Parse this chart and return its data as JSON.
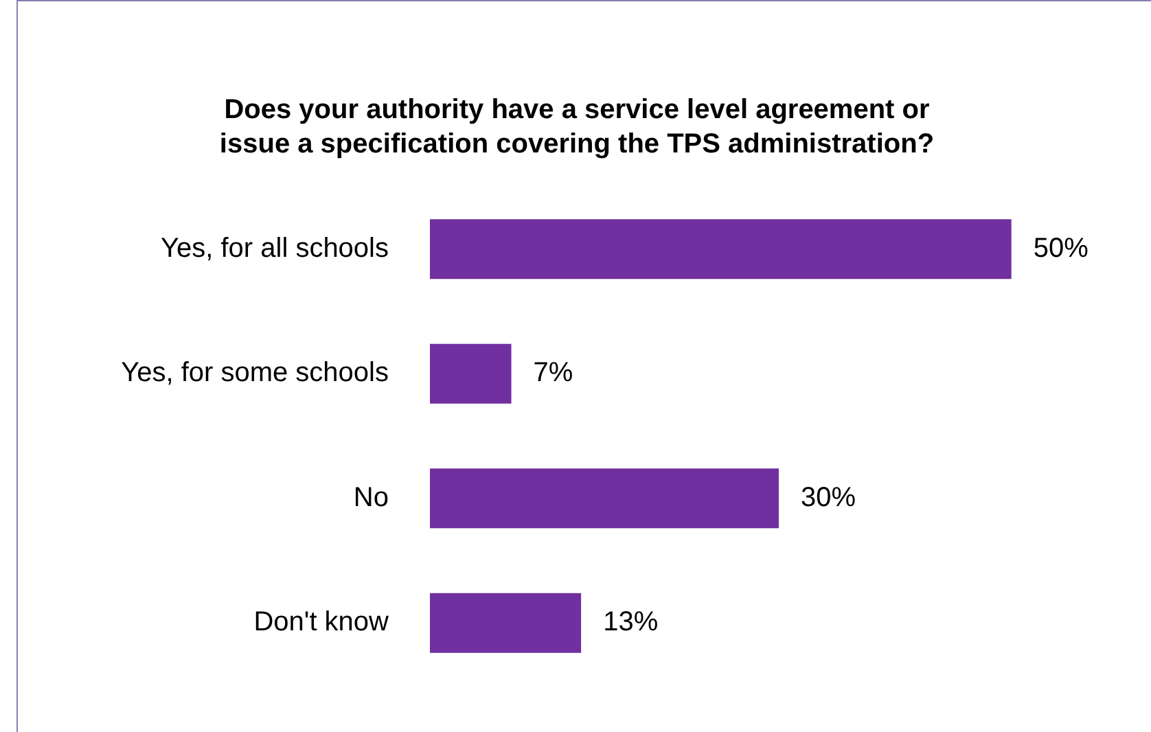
{
  "chart_data": {
    "type": "bar",
    "orientation": "horizontal",
    "title": "Does your authority have a service level agreement or issue a specification covering the TPS administration?",
    "categories": [
      "Yes, for all schools",
      "Yes, for some schools",
      "No",
      "Don't know"
    ],
    "values": [
      50,
      7,
      30,
      13
    ],
    "value_labels": [
      "50%",
      "7%",
      "30%",
      "13%"
    ],
    "color": "#7030a0",
    "tick_labels": "y",
    "grid": false,
    "legend": false
  }
}
